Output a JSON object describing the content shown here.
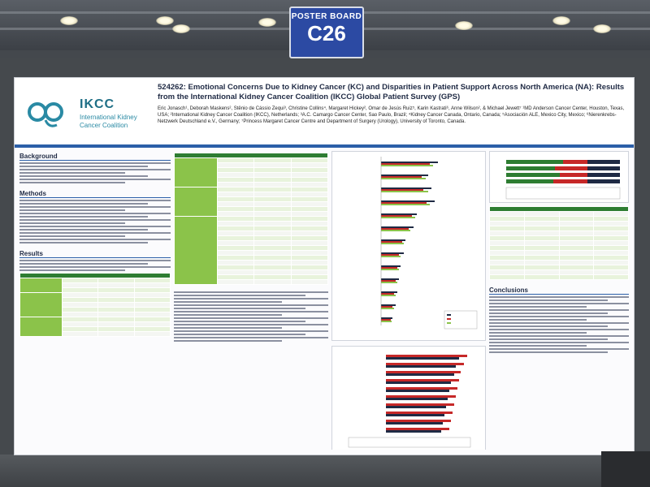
{
  "board": {
    "label": "POSTER BOARD",
    "code": "C26"
  },
  "logo": {
    "mark": "ikcc-logo",
    "title": "IKCC",
    "subtitle": "International Kidney Cancer Coalition"
  },
  "poster": {
    "title": "524262: Emotional Concerns Due to Kidney Cancer (KC) and Disparities in Patient Support Across North America (NA): Results from the International Kidney Cancer Coalition (IKCC) Global Patient Survey (GPS)",
    "authors": "Eric Jonasch¹, Deborah Maskens², Stênio de Cássio Zequi³, Christine Collins⁴, Margaret Hickey², Omar de Jesús Ruiz⁵, Karin Kastrati⁶, Anne Wilson², & Michael Jewett⁷ ¹MD Anderson Cancer Center, Houston, Texas, USA; ²International Kidney Cancer Coalition (IKCC), Netherlands; ³A.C. Camargo Cancer Center, Sao Paulo, Brazil; ⁴Kidney Cancer Canada, Ontario, Canada; ⁵Asociación ALE, Mexico City, Mexico; ⁶Nierenkrebs-Netzwerk Deutschland e.V., Germany; ⁷Princess Margaret Cancer Centre and Department of Surgery (Urology), University of Toronto, Canada."
  },
  "sections": {
    "background": "Background",
    "methods": "Methods",
    "results": "Results",
    "conclusions": "Conclusions"
  },
  "colors": {
    "accent": "#2b5fa8",
    "green": "#8bc34a",
    "dark_green": "#2e7d32",
    "red": "#c62828",
    "navy": "#1f2a44",
    "sign_blue": "#2c4aa3"
  }
}
